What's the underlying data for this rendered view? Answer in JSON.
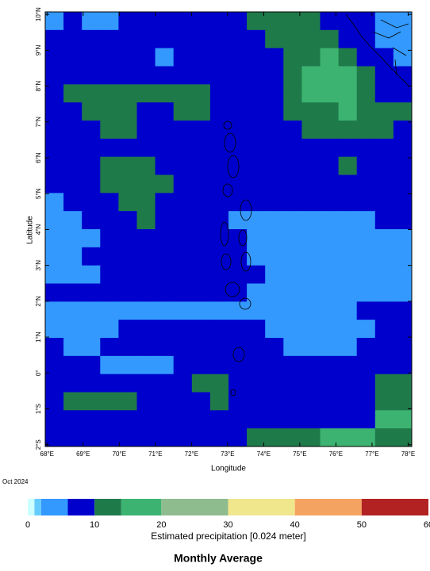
{
  "chart_data": {
    "type": "heatmap",
    "title": "Monthly Average",
    "date": "Oct 2024",
    "xlabel": "Longitude",
    "ylabel": "Latitude",
    "xlim": [
      67.95,
      78.1
    ],
    "ylim": [
      -2.05,
      10.07
    ],
    "xticks": [
      {
        "value": 68,
        "label": "68°E"
      },
      {
        "value": 69,
        "label": "69°E"
      },
      {
        "value": 70,
        "label": "70°E"
      },
      {
        "value": 71,
        "label": "71°E"
      },
      {
        "value": 72,
        "label": "72°E"
      },
      {
        "value": 73,
        "label": "73°E"
      },
      {
        "value": 74,
        "label": "74°E"
      },
      {
        "value": 75,
        "label": "75°E"
      },
      {
        "value": 76,
        "label": "76°E"
      },
      {
        "value": 77,
        "label": "77°E"
      },
      {
        "value": 78,
        "label": "78°E"
      }
    ],
    "yticks": [
      {
        "value": 10,
        "label": "10°N"
      },
      {
        "value": 9,
        "label": "9°N"
      },
      {
        "value": 8,
        "label": "8°N"
      },
      {
        "value": 7,
        "label": "7°N"
      },
      {
        "value": 6,
        "label": "6°N"
      },
      {
        "value": 5,
        "label": "5°N"
      },
      {
        "value": 4,
        "label": "4°N"
      },
      {
        "value": 3,
        "label": "3°N"
      },
      {
        "value": 2,
        "label": "2°N"
      },
      {
        "value": 1,
        "label": "1°N"
      },
      {
        "value": 0,
        "label": "0°"
      },
      {
        "value": -1,
        "label": "1°S"
      },
      {
        "value": -2,
        "label": "2°S"
      }
    ],
    "colorbar": {
      "label": "Estimated precipitation [0.024 meter]",
      "levels": [
        0,
        1,
        2,
        6,
        10,
        14,
        20,
        30,
        40,
        50,
        60
      ],
      "colors": [
        "#ccffff",
        "#66ccff",
        "#3399ff",
        "#0000cc",
        "#1f7a4a",
        "#3cb371",
        "#8fbc8f",
        "#f0e68c",
        "#f4a460",
        "#b22222"
      ],
      "lim": [
        0,
        60
      ],
      "ticks": [
        0,
        10,
        20,
        30,
        40,
        50,
        60
      ]
    },
    "values": [
      [
        4,
        8,
        4,
        4,
        8,
        8,
        8,
        8,
        8,
        8,
        8,
        12,
        12,
        12,
        12,
        8,
        8,
        8,
        4,
        4
      ],
      [
        8,
        8,
        8,
        8,
        8,
        8,
        8,
        8,
        8,
        8,
        8,
        8,
        12,
        12,
        12,
        12,
        8,
        8,
        4,
        4
      ],
      [
        8,
        8,
        8,
        8,
        8,
        8,
        4,
        8,
        8,
        8,
        8,
        8,
        8,
        12,
        12,
        17,
        12,
        8,
        8,
        4
      ],
      [
        8,
        8,
        8,
        8,
        8,
        8,
        8,
        8,
        8,
        8,
        8,
        8,
        8,
        12,
        17,
        17,
        17,
        12,
        8,
        8
      ],
      [
        8,
        12,
        12,
        12,
        12,
        12,
        12,
        12,
        12,
        8,
        8,
        8,
        8,
        12,
        17,
        17,
        17,
        12,
        8,
        8
      ],
      [
        8,
        8,
        12,
        12,
        12,
        8,
        8,
        12,
        12,
        8,
        8,
        8,
        8,
        12,
        12,
        12,
        17,
        12,
        12,
        12
      ],
      [
        8,
        8,
        8,
        12,
        12,
        8,
        8,
        8,
        8,
        8,
        8,
        8,
        8,
        8,
        12,
        12,
        12,
        12,
        12,
        8
      ],
      [
        8,
        8,
        8,
        8,
        8,
        8,
        8,
        8,
        8,
        8,
        8,
        8,
        8,
        8,
        8,
        8,
        8,
        8,
        8,
        8
      ],
      [
        8,
        8,
        8,
        12,
        12,
        12,
        8,
        8,
        8,
        8,
        8,
        8,
        8,
        8,
        8,
        8,
        12,
        8,
        8,
        8
      ],
      [
        8,
        8,
        8,
        12,
        12,
        12,
        12,
        8,
        8,
        8,
        8,
        8,
        8,
        8,
        8,
        8,
        8,
        8,
        8,
        8
      ],
      [
        4,
        8,
        8,
        8,
        12,
        12,
        8,
        8,
        8,
        8,
        8,
        8,
        8,
        8,
        8,
        8,
        8,
        8,
        8,
        8
      ],
      [
        4,
        4,
        8,
        8,
        8,
        12,
        8,
        8,
        8,
        8,
        4,
        4,
        4,
        4,
        4,
        4,
        4,
        4,
        8,
        8
      ],
      [
        4,
        4,
        4,
        8,
        8,
        8,
        8,
        8,
        8,
        8,
        8,
        4,
        4,
        4,
        4,
        4,
        4,
        4,
        4,
        4
      ],
      [
        4,
        4,
        8,
        8,
        8,
        8,
        8,
        8,
        8,
        8,
        8,
        4,
        4,
        4,
        4,
        4,
        4,
        4,
        4,
        4
      ],
      [
        4,
        4,
        4,
        8,
        8,
        8,
        8,
        8,
        8,
        8,
        8,
        8,
        4,
        4,
        4,
        4,
        4,
        4,
        4,
        4
      ],
      [
        8,
        8,
        8,
        8,
        8,
        8,
        8,
        8,
        8,
        8,
        8,
        4,
        4,
        4,
        4,
        4,
        4,
        4,
        4,
        4
      ],
      [
        4,
        4,
        4,
        4,
        4,
        4,
        4,
        4,
        4,
        4,
        4,
        4,
        4,
        4,
        4,
        4,
        4,
        8,
        8,
        8
      ],
      [
        4,
        4,
        4,
        4,
        8,
        8,
        8,
        8,
        8,
        8,
        8,
        8,
        4,
        4,
        4,
        4,
        4,
        4,
        8,
        8
      ],
      [
        8,
        4,
        4,
        8,
        8,
        8,
        8,
        8,
        8,
        8,
        8,
        8,
        8,
        4,
        4,
        4,
        4,
        8,
        8,
        8
      ],
      [
        8,
        8,
        8,
        4,
        4,
        4,
        4,
        8,
        8,
        8,
        8,
        8,
        8,
        8,
        8,
        8,
        8,
        8,
        8,
        8
      ],
      [
        8,
        8,
        8,
        8,
        8,
        8,
        8,
        8,
        12,
        12,
        8,
        8,
        8,
        8,
        8,
        8,
        8,
        8,
        12,
        12
      ],
      [
        8,
        12,
        12,
        12,
        12,
        8,
        8,
        8,
        8,
        12,
        8,
        8,
        8,
        8,
        8,
        8,
        8,
        8,
        12,
        12
      ],
      [
        8,
        8,
        8,
        8,
        8,
        8,
        8,
        8,
        8,
        8,
        8,
        8,
        8,
        8,
        8,
        8,
        8,
        8,
        17,
        17
      ],
      [
        8,
        8,
        8,
        8,
        8,
        8,
        8,
        8,
        8,
        8,
        8,
        12,
        12,
        12,
        12,
        17,
        17,
        17,
        12,
        12
      ]
    ]
  }
}
